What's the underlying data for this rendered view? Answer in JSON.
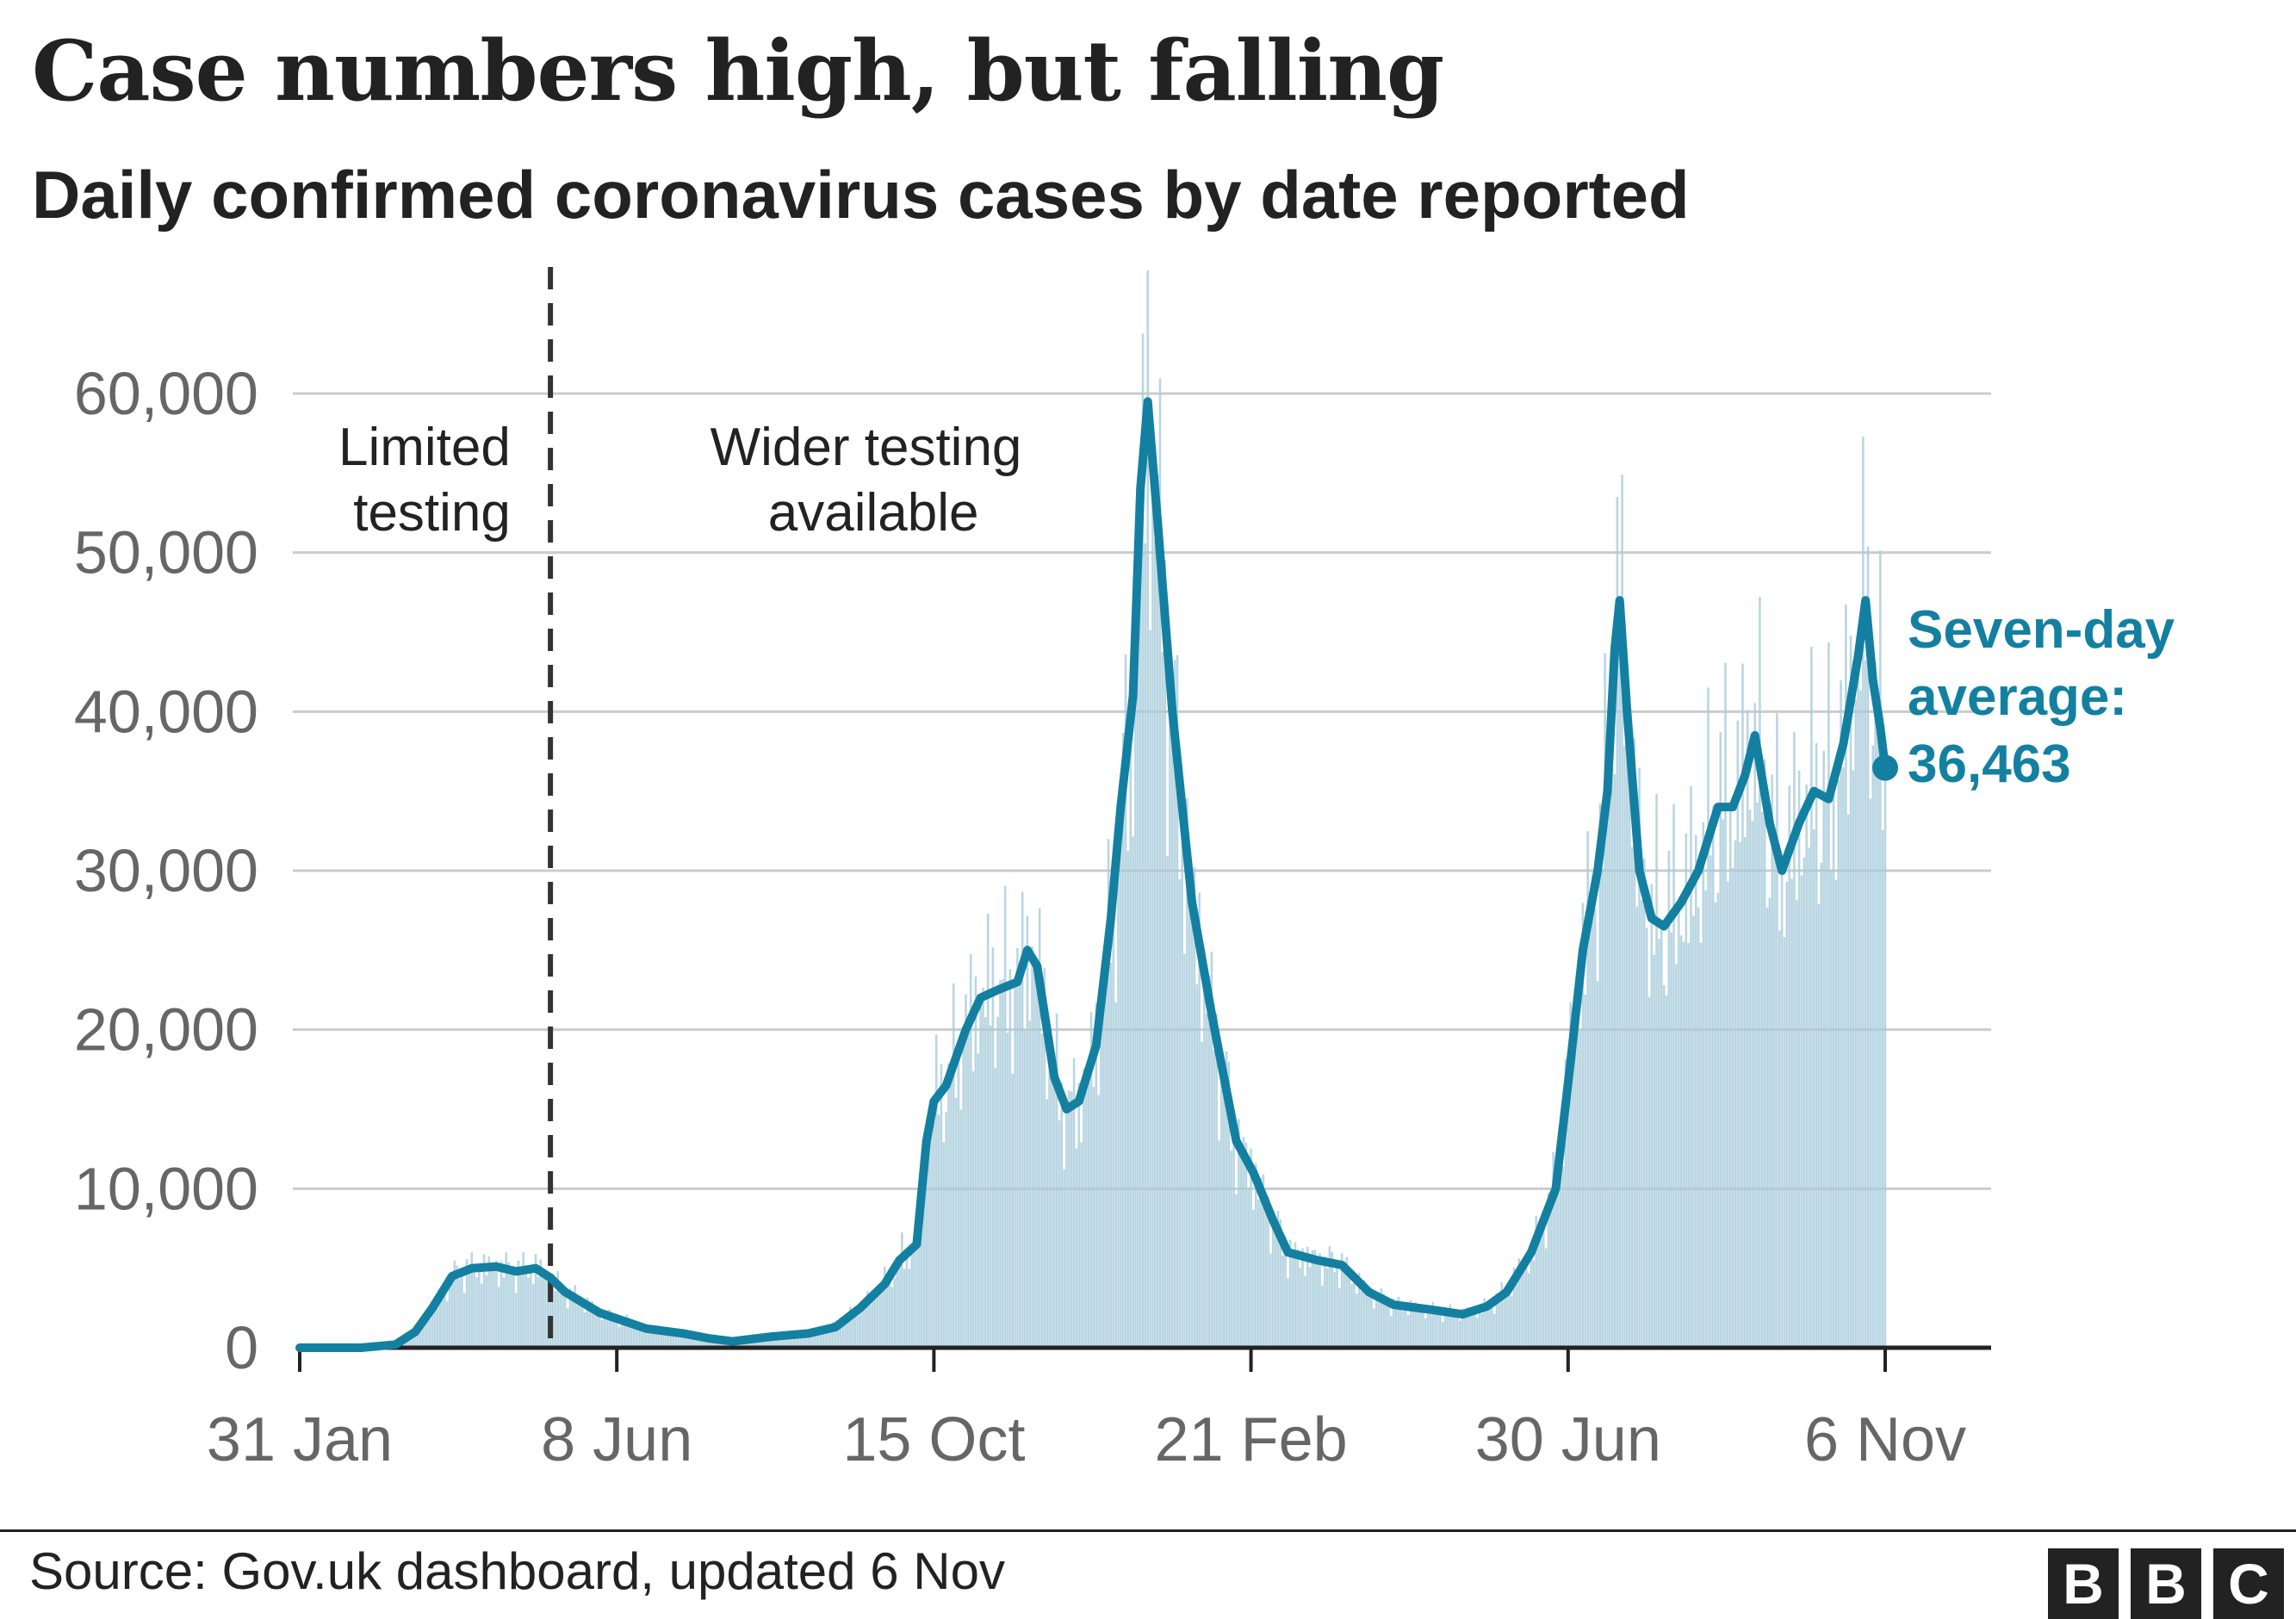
{
  "title": "Case numbers high, but falling",
  "subtitle": "Daily confirmed coronavirus cases by date reported",
  "source": "Source: Gov.uk dashboard, updated 6 Nov",
  "logo": [
    "B",
    "B",
    "C"
  ],
  "colors": {
    "line": "#1380a1",
    "bars": "#a8ccdb",
    "grid": "#cccccc",
    "text": "#222222",
    "axis_text": "#666666"
  },
  "chart_data": {
    "type": "line",
    "title": "Case numbers high, but falling",
    "subtitle": "Daily confirmed coronavirus cases by date reported",
    "x_start": "2020-01-31",
    "x_end": "2021-11-06",
    "x_ticks": [
      "31 Jan",
      "8 Jun",
      "15 Oct",
      "21 Feb",
      "30 Jun",
      "6 Nov"
    ],
    "x_tick_dates": [
      "2020-01-31",
      "2020-06-08",
      "2020-10-15",
      "2021-02-21",
      "2021-06-30",
      "2021-11-06"
    ],
    "ylim": [
      0,
      60000
    ],
    "y_ticks": [
      0,
      10000,
      20000,
      30000,
      40000,
      50000,
      60000
    ],
    "y_tick_labels": [
      "0",
      "10,000",
      "20,000",
      "30,000",
      "40,000",
      "50,000",
      "60,000"
    ],
    "grid": true,
    "annotations": {
      "divider_date": "2020-05-12",
      "left_region": [
        "Limited",
        "testing"
      ],
      "right_region": [
        "Wider testing",
        "available"
      ],
      "end_label": [
        "Seven-day",
        "average:",
        "36,463"
      ]
    },
    "series": [
      {
        "kind": "bars",
        "description": "daily reported cases"
      },
      {
        "kind": "line",
        "name": "Seven-day average",
        "points": [
          [
            "2020-01-31",
            0
          ],
          [
            "2020-02-25",
            0
          ],
          [
            "2020-03-10",
            200
          ],
          [
            "2020-03-18",
            1000
          ],
          [
            "2020-03-25",
            2500
          ],
          [
            "2020-04-02",
            4500
          ],
          [
            "2020-04-10",
            5000
          ],
          [
            "2020-04-20",
            5100
          ],
          [
            "2020-04-28",
            4800
          ],
          [
            "2020-05-06",
            5000
          ],
          [
            "2020-05-12",
            4400
          ],
          [
            "2020-05-18",
            3500
          ],
          [
            "2020-06-01",
            2200
          ],
          [
            "2020-06-20",
            1200
          ],
          [
            "2020-07-05",
            900
          ],
          [
            "2020-07-15",
            600
          ],
          [
            "2020-07-25",
            400
          ],
          [
            "2020-08-10",
            700
          ],
          [
            "2020-08-25",
            900
          ],
          [
            "2020-09-05",
            1300
          ],
          [
            "2020-09-15",
            2500
          ],
          [
            "2020-09-25",
            4000
          ],
          [
            "2020-10-01",
            5500
          ],
          [
            "2020-10-08",
            6500
          ],
          [
            "2020-10-12",
            13000
          ],
          [
            "2020-10-15",
            15500
          ],
          [
            "2020-10-20",
            16500
          ],
          [
            "2020-10-28",
            20000
          ],
          [
            "2020-11-03",
            22000
          ],
          [
            "2020-11-10",
            22500
          ],
          [
            "2020-11-18",
            23000
          ],
          [
            "2020-11-22",
            25000
          ],
          [
            "2020-11-26",
            24000
          ],
          [
            "2020-12-03",
            17000
          ],
          [
            "2020-12-08",
            15000
          ],
          [
            "2020-12-13",
            15500
          ],
          [
            "2020-12-20",
            19000
          ],
          [
            "2020-12-26",
            27000
          ],
          [
            "2020-12-30",
            34000
          ],
          [
            "2021-01-04",
            41000
          ],
          [
            "2021-01-07",
            54000
          ],
          [
            "2021-01-10",
            59500
          ],
          [
            "2021-01-14",
            52000
          ],
          [
            "2021-01-20",
            40000
          ],
          [
            "2021-01-28",
            28000
          ],
          [
            "2021-02-05",
            21000
          ],
          [
            "2021-02-15",
            13000
          ],
          [
            "2021-02-22",
            11000
          ],
          [
            "2021-03-02",
            8000
          ],
          [
            "2021-03-08",
            6000
          ],
          [
            "2021-03-20",
            5500
          ],
          [
            "2021-03-30",
            5200
          ],
          [
            "2021-04-10",
            3500
          ],
          [
            "2021-04-20",
            2700
          ],
          [
            "2021-05-05",
            2400
          ],
          [
            "2021-05-18",
            2100
          ],
          [
            "2021-05-28",
            2600
          ],
          [
            "2021-06-05",
            3500
          ],
          [
            "2021-06-15",
            6000
          ],
          [
            "2021-06-25",
            10000
          ],
          [
            "2021-07-01",
            18000
          ],
          [
            "2021-07-06",
            25000
          ],
          [
            "2021-07-12",
            30000
          ],
          [
            "2021-07-16",
            35000
          ],
          [
            "2021-07-19",
            44000
          ],
          [
            "2021-07-21",
            47000
          ],
          [
            "2021-07-24",
            40000
          ],
          [
            "2021-07-29",
            30000
          ],
          [
            "2021-08-03",
            27000
          ],
          [
            "2021-08-08",
            26500
          ],
          [
            "2021-08-15",
            28000
          ],
          [
            "2021-08-22",
            30000
          ],
          [
            "2021-08-30",
            34000
          ],
          [
            "2021-09-05",
            34000
          ],
          [
            "2021-09-10",
            36000
          ],
          [
            "2021-09-14",
            38500
          ],
          [
            "2021-09-20",
            33000
          ],
          [
            "2021-09-25",
            30000
          ],
          [
            "2021-10-02",
            33000
          ],
          [
            "2021-10-08",
            35000
          ],
          [
            "2021-10-14",
            34500
          ],
          [
            "2021-10-20",
            38000
          ],
          [
            "2021-10-26",
            43500
          ],
          [
            "2021-10-29",
            47000
          ],
          [
            "2021-11-01",
            42000
          ],
          [
            "2021-11-04",
            39000
          ],
          [
            "2021-11-06",
            36463
          ]
        ]
      }
    ]
  }
}
